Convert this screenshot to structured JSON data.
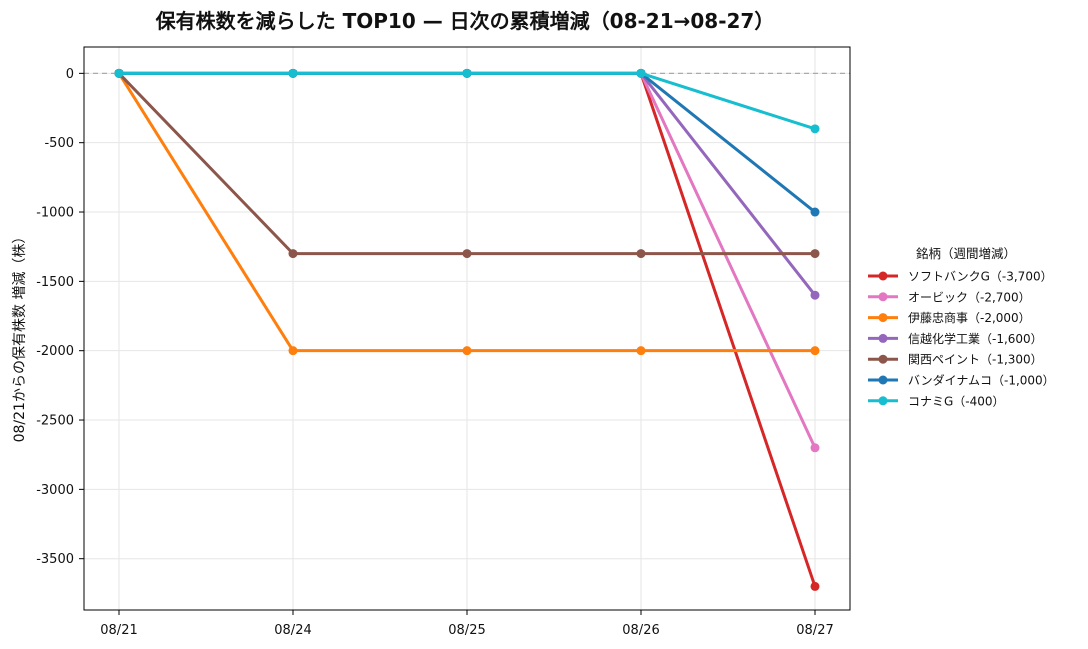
{
  "chart_data": {
    "type": "line",
    "title": "保有株数を減らした TOP10 — 日次の累積増減（08-21→08-27）",
    "xlabel": "",
    "ylabel": "08/21からの保有株数 増減（株）",
    "x": [
      "08/21",
      "08/24",
      "08/25",
      "08/26",
      "08/27"
    ],
    "ylim": [
      -3870,
      190
    ],
    "yticks": [
      0,
      -500,
      -1000,
      -1500,
      -2000,
      -2500,
      -3000,
      -3500
    ],
    "grid": true,
    "zero_line": true,
    "legend": {
      "title": "銘柄（週間増減）",
      "placement": "right"
    },
    "series": [
      {
        "name": "ソフトバンクG（-3,700）",
        "color": "#d62728",
        "values": [
          0,
          0,
          0,
          0,
          -3700
        ]
      },
      {
        "name": "オービック（-2,700）",
        "color": "#e377c2",
        "values": [
          0,
          0,
          0,
          0,
          -2700
        ]
      },
      {
        "name": "伊藤忠商事（-2,000）",
        "color": "#ff7f0e",
        "values": [
          0,
          -2000,
          -2000,
          -2000,
          -2000
        ]
      },
      {
        "name": "信越化学工業（-1,600）",
        "color": "#9467bd",
        "values": [
          0,
          0,
          0,
          0,
          -1600
        ]
      },
      {
        "name": "関西ペイント（-1,300）",
        "color": "#8c564b",
        "values": [
          0,
          -1300,
          -1300,
          -1300,
          -1300
        ]
      },
      {
        "name": "バンダイナムコ（-1,000）",
        "color": "#1f77b4",
        "values": [
          0,
          0,
          0,
          0,
          -1000
        ]
      },
      {
        "name": "コナミG（-400）",
        "color": "#17becf",
        "values": [
          0,
          0,
          0,
          0,
          -400
        ]
      }
    ]
  }
}
